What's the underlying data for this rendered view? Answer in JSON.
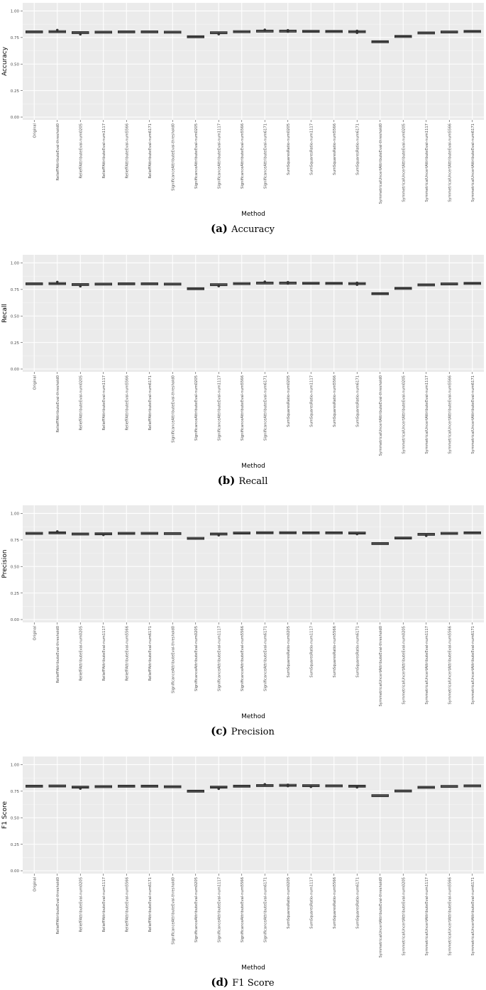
{
  "chart_data": [
    {
      "type": "box",
      "ylabel": "Accuracy",
      "xlabel": "Method",
      "ylim": [
        0,
        1.0
      ],
      "yticks": [
        "0.00",
        "0.25",
        "0.50",
        "0.75",
        "1.00"
      ],
      "caption_letter": "(a)",
      "caption_text": "Accuracy",
      "categories": [
        "Original",
        "ReliefFAttributeEval-threshold0",
        "ReliefFAttributeEval-num0205",
        "ReliefFAttributeEval-num1117",
        "ReliefFAttributeEval-num5566",
        "ReliefFAttributeEval-num6171",
        "SignificanceAttributeEval-threshold0",
        "SignificanceAttributeEval-num0205",
        "SignificanceAttributeEval-num1117",
        "SignificanceAttributeEval-num5566",
        "SignificanceAttributeEval-num6171",
        "SumSquaresRatio-num0205",
        "SumSquaresRatio-num1117",
        "SumSquaresRatio-num5566",
        "SumSquaresRatio-num6171",
        "SymmetricalUncertAttributeEval-threshold0",
        "SymmetricalUncertAttributeEval-num0205",
        "SymmetricalUncertAttributeEval-num1117",
        "SymmetricalUncertAttributeEval-num5566",
        "SymmetricalUncertAttributeEval-num6171"
      ],
      "values": [
        0.803,
        0.805,
        0.796,
        0.8,
        0.803,
        0.803,
        0.8,
        0.757,
        0.795,
        0.805,
        0.81,
        0.81,
        0.808,
        0.807,
        0.805,
        0.71,
        0.76,
        0.793,
        0.802,
        0.807
      ],
      "outliers": [
        [],
        [
          0.82
        ],
        [
          0.78
        ],
        [],
        [],
        [],
        [],
        [],
        [
          0.782
        ],
        [],
        [
          0.822
        ],
        [
          0.818,
          0.806
        ],
        [],
        [],
        [
          0.812,
          0.795
        ],
        [],
        [],
        [],
        [],
        []
      ]
    },
    {
      "type": "box",
      "ylabel": "Recall",
      "xlabel": "Method",
      "ylim": [
        0,
        1.0
      ],
      "yticks": [
        "0.00",
        "0.25",
        "0.50",
        "0.75",
        "1.00"
      ],
      "caption_letter": "(b)",
      "caption_text": "Recall",
      "categories": [
        "Original",
        "ReliefFAttributeEval-threshold0",
        "ReliefFAttributeEval-num0205",
        "ReliefFAttributeEval-num1117",
        "ReliefFAttributeEval-num5566",
        "ReliefFAttributeEval-num6171",
        "SignificanceAttributeEval-threshold0",
        "SignificanceAttributeEval-num0205",
        "SignificanceAttributeEval-num1117",
        "SignificanceAttributeEval-num5566",
        "SignificanceAttributeEval-num6171",
        "SumSquaresRatio-num0205",
        "SumSquaresRatio-num1117",
        "SumSquaresRatio-num5566",
        "SumSquaresRatio-num6171",
        "SymmetricalUncertAttributeEval-threshold0",
        "SymmetricalUncertAttributeEval-num0205",
        "SymmetricalUncertAttributeEval-num1117",
        "SymmetricalUncertAttributeEval-num5566",
        "SymmetricalUncertAttributeEval-num6171"
      ],
      "values": [
        0.803,
        0.805,
        0.796,
        0.8,
        0.803,
        0.803,
        0.8,
        0.757,
        0.795,
        0.805,
        0.81,
        0.81,
        0.808,
        0.807,
        0.805,
        0.71,
        0.76,
        0.793,
        0.802,
        0.807
      ],
      "outliers": [
        [],
        [
          0.82
        ],
        [
          0.78
        ],
        [],
        [],
        [],
        [],
        [],
        [
          0.782
        ],
        [],
        [
          0.822
        ],
        [
          0.818,
          0.806
        ],
        [],
        [],
        [
          0.812,
          0.795
        ],
        [],
        [],
        [],
        [],
        []
      ]
    },
    {
      "type": "box",
      "ylabel": "Precision",
      "xlabel": "Method",
      "ylim": [
        0,
        1.0
      ],
      "yticks": [
        "0.00",
        "0.25",
        "0.50",
        "0.75",
        "1.00"
      ],
      "caption_letter": "(c)",
      "caption_text": "Precision",
      "categories": [
        "Original",
        "ReliefFAttributeEval-threshold0",
        "ReliefFAttributeEval-num0205",
        "ReliefFAttributeEval-num1117",
        "ReliefFAttributeEval-num5566",
        "ReliefFAttributeEval-num6171",
        "SignificanceAttributeEval-threshold0",
        "SignificanceAttributeEval-num0205",
        "SignificanceAttributeEval-num1117",
        "SignificanceAttributeEval-num5566",
        "SignificanceAttributeEval-num6171",
        "SumSquaresRatio-num0205",
        "SumSquaresRatio-num1117",
        "SumSquaresRatio-num5566",
        "SumSquaresRatio-num6171",
        "SymmetricalUncertAttributeEval-threshold0",
        "SymmetricalUncertAttributeEval-num0205",
        "SymmetricalUncertAttributeEval-num1117",
        "SymmetricalUncertAttributeEval-num5566",
        "SymmetricalUncertAttributeEval-num6171"
      ],
      "values": [
        0.812,
        0.817,
        0.806,
        0.808,
        0.812,
        0.812,
        0.81,
        0.765,
        0.806,
        0.815,
        0.818,
        0.818,
        0.817,
        0.817,
        0.815,
        0.716,
        0.768,
        0.803,
        0.812,
        0.817
      ],
      "outliers": [
        [],
        [
          0.83
        ],
        [],
        [
          0.798
        ],
        [],
        [],
        [],
        [],
        [
          0.795
        ],
        [],
        [],
        [],
        [],
        [],
        [
          0.806
        ],
        [],
        [],
        [
          0.79
        ],
        [],
        []
      ]
    },
    {
      "type": "box",
      "ylabel": "F1 Score",
      "xlabel": "Method",
      "ylim": [
        0,
        1.0
      ],
      "yticks": [
        "0.00",
        "0.25",
        "0.50",
        "0.75",
        "1.00"
      ],
      "caption_letter": "(d)",
      "caption_text": "F1 Score",
      "categories": [
        "Original",
        "ReliefFAttributeEval-threshold0",
        "ReliefFAttributeEval-num0205",
        "ReliefFAttributeEval-num1117",
        "ReliefFAttributeEval-num5566",
        "ReliefFAttributeEval-num6171",
        "SignificanceAttributeEval-threshold0",
        "SignificanceAttributeEval-num0205",
        "SignificanceAttributeEval-num1117",
        "SignificanceAttributeEval-num5566",
        "SignificanceAttributeEval-num6171",
        "SumSquaresRatio-num0205",
        "SumSquaresRatio-num1117",
        "SumSquaresRatio-num5566",
        "SumSquaresRatio-num6171",
        "SymmetricalUncertAttributeEval-threshold0",
        "SymmetricalUncertAttributeEval-num0205",
        "SymmetricalUncertAttributeEval-num1117",
        "SymmetricalUncertAttributeEval-num5566",
        "SymmetricalUncertAttributeEval-num6171"
      ],
      "values": [
        0.797,
        0.799,
        0.788,
        0.793,
        0.797,
        0.797,
        0.792,
        0.75,
        0.788,
        0.797,
        0.803,
        0.805,
        0.802,
        0.8,
        0.797,
        0.708,
        0.752,
        0.786,
        0.795,
        0.8
      ],
      "outliers": [
        [],
        [],
        [
          0.775
        ],
        [],
        [],
        [],
        [],
        [],
        [
          0.773
        ],
        [],
        [
          0.815
        ],
        [
          0.81,
          0.798
        ],
        [
          0.792
        ],
        [],
        [
          0.787
        ],
        [],
        [],
        [],
        [],
        []
      ]
    }
  ]
}
